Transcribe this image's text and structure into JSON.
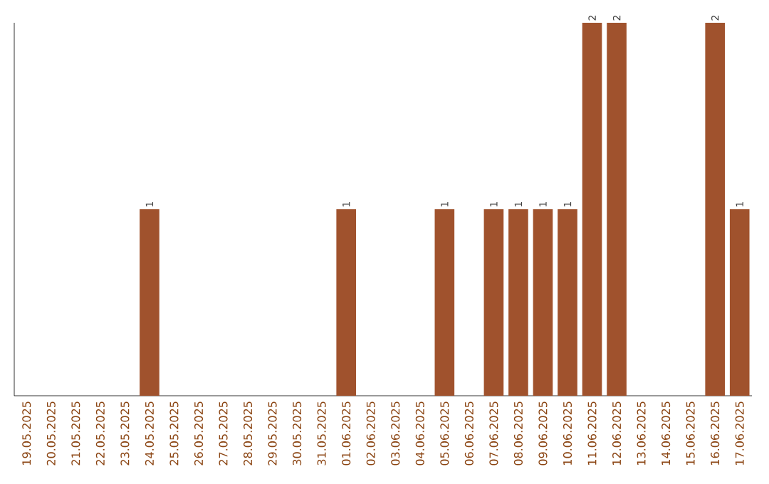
{
  "chart_data": {
    "type": "bar",
    "categories": [
      "19.05.2025",
      "20.05.2025",
      "21.05.2025",
      "22.05.2025",
      "23.05.2025",
      "24.05.2025",
      "25.05.2025",
      "26.05.2025",
      "27.05.2025",
      "28.05.2025",
      "29.05.2025",
      "30.05.2025",
      "31.05.2025",
      "01.06.2025",
      "02.06.2025",
      "03.06.2025",
      "04.06.2025",
      "05.06.2025",
      "06.06.2025",
      "07.06.2025",
      "08.06.2025",
      "09.06.2025",
      "10.06.2025",
      "11.06.2025",
      "12.06.2025",
      "13.06.2025",
      "14.06.2025",
      "15.06.2025",
      "16.06.2025",
      "17.06.2025"
    ],
    "values": [
      0,
      0,
      0,
      0,
      0,
      1,
      0,
      0,
      0,
      0,
      0,
      0,
      0,
      1,
      0,
      0,
      0,
      1,
      0,
      1,
      1,
      1,
      1,
      2,
      2,
      0,
      0,
      0,
      2,
      1
    ],
    "value_labels": [
      null,
      null,
      null,
      null,
      null,
      "1",
      null,
      null,
      null,
      null,
      null,
      null,
      null,
      "1",
      null,
      null,
      null,
      "1",
      null,
      "1",
      "1",
      "1",
      "1",
      "2",
      "2",
      null,
      null,
      null,
      "2",
      "1"
    ],
    "color": "#a0522d",
    "ylim": [
      0,
      2
    ],
    "tick_labels": "x",
    "grid": false
  }
}
